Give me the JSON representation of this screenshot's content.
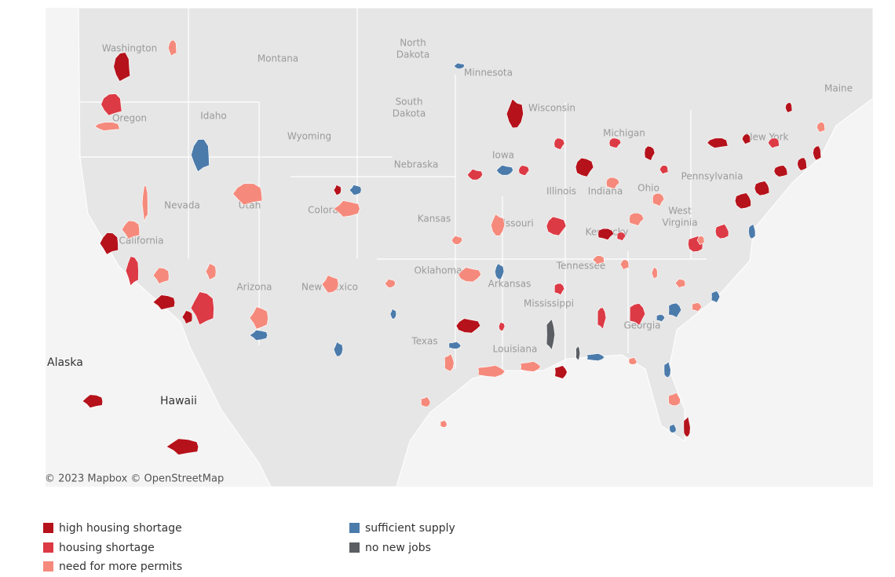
{
  "map": {
    "attribution": "© 2023 Mapbox  © OpenStreetMap",
    "insets": [
      "Alaska",
      "Hawaii"
    ],
    "place_labels": [
      "Montana",
      "North",
      "Dakota",
      "South",
      "Dakota",
      "Minnesota",
      "Wisconsin",
      "Wyoming",
      "Nebraska",
      "Iowa",
      "Oregon",
      "Idaho",
      "Washington",
      "Nevada",
      "Utah",
      "Colorado",
      "Kansas",
      "Missouri",
      "California",
      "Arizona",
      "New Mexico",
      "Texas",
      "Oklahoma",
      "Arkansas",
      "Louisiana",
      "Mississippi",
      "Georgia",
      "Tennessee",
      "Kentucky",
      "Illinois",
      "Indiana",
      "Ohio",
      "West",
      "Virginia",
      "Pennsylvania",
      "New York",
      "Maine",
      "Michigan"
    ]
  },
  "legend": [
    {
      "name": "high housing shortage",
      "color": "#b5121b"
    },
    {
      "name": "housing shortage",
      "color": "#dc3a45"
    },
    {
      "name": "need for more permits",
      "color": "#f58a7c"
    },
    {
      "name": "sufficient supply",
      "color": "#4b7bab"
    },
    {
      "name": "no new jobs",
      "color": "#5b5f64"
    }
  ]
}
